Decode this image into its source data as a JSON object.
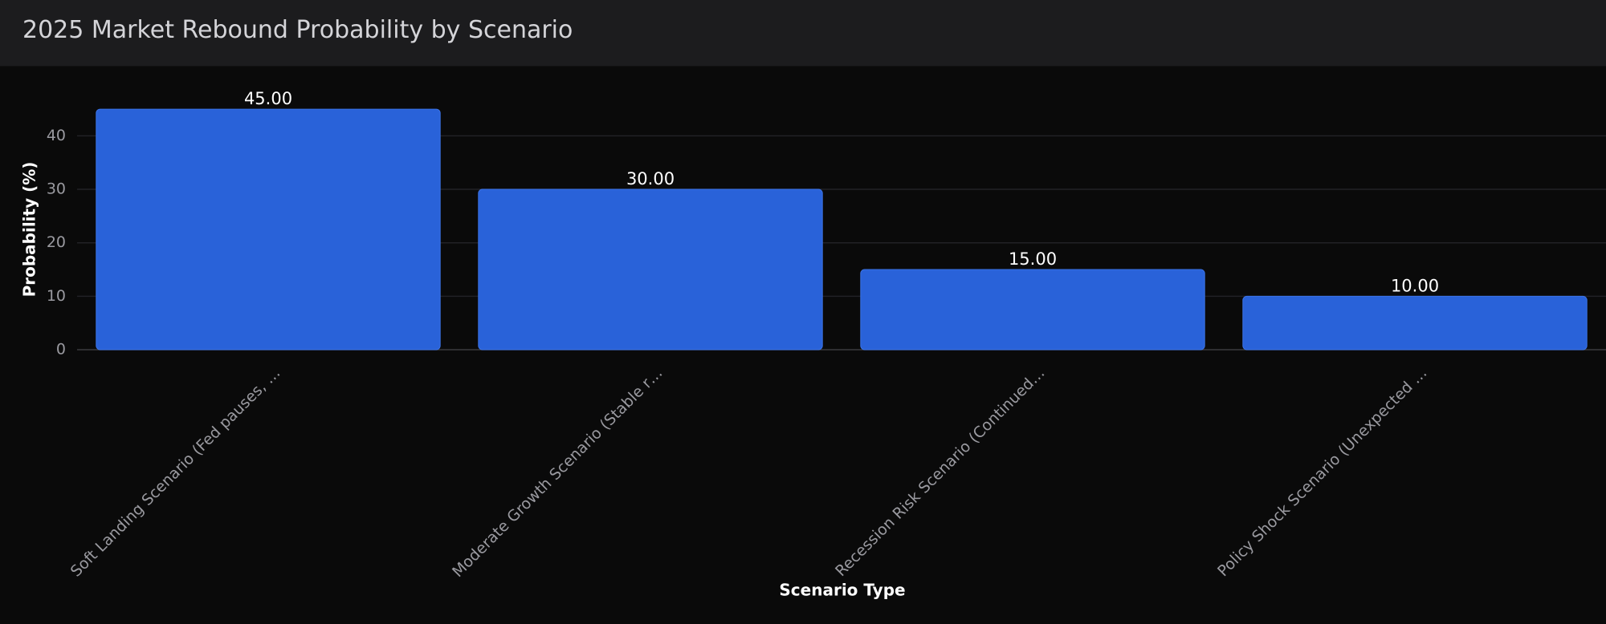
{
  "chart_data": {
    "type": "bar",
    "title": "2025 Market Rebound Probability by Scenario",
    "x_label": "Scenario Type",
    "y_label": "Probability (%)",
    "categories": [
      "Soft Landing Scenario (Fed pauses, …",
      "Moderate Growth Scenario (Stable r…",
      "Recession Risk Scenario (Continued…",
      "Policy Shock Scenario (Unexpected …"
    ],
    "values": [
      45,
      30,
      15,
      10
    ],
    "value_labels": [
      "45.00",
      "30.00",
      "15.00",
      "10.00"
    ],
    "color": "#2962d9",
    "ylim": [
      0,
      50
    ],
    "yticks": [
      0,
      10,
      20,
      30,
      40
    ],
    "grid": true
  }
}
